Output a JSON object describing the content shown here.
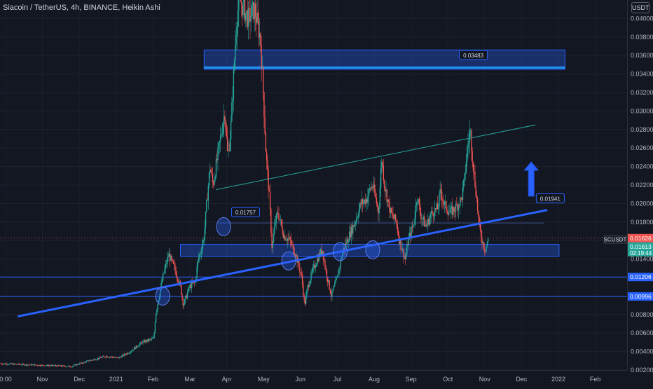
{
  "chart_data": {
    "type": "candlestick",
    "title": "Siacoin / TetherUS, 4h, BINANCE, Heikin Ashi",
    "currency_label": "USDT",
    "symbol": "SCUSDT",
    "ylim": [
      0.002,
      0.042
    ],
    "y_ticks": [
      0.002,
      0.004,
      0.006,
      0.008,
      0.01,
      0.012,
      0.014,
      0.016,
      0.018,
      0.02,
      0.022,
      0.024,
      0.026,
      0.028,
      0.03,
      0.032,
      0.034,
      0.036,
      0.038,
      0.04
    ],
    "x_ticks": [
      "0:00",
      "Nov",
      "Dec",
      "2021",
      "Feb",
      "Mar",
      "Apr",
      "May",
      "Jun",
      "Jul",
      "Aug",
      "Sep",
      "Oct",
      "Nov",
      "Dec",
      "2022",
      "Feb"
    ],
    "price_markers": [
      {
        "label": "0.01626",
        "value": 0.01626,
        "color": "#ef5350"
      },
      {
        "label": "0.01613",
        "value": 0.01613,
        "color": "#26a69a",
        "countdown": "02:19:44"
      },
      {
        "label": "0.01206",
        "value": 0.01206,
        "color": "#2962ff"
      },
      {
        "label": "0.00996",
        "value": 0.00996,
        "color": "#2962ff"
      }
    ],
    "annotations": [
      {
        "label": "0.03483",
        "value": 0.03483
      },
      {
        "label": "0.01757",
        "value": 0.01757
      },
      {
        "label": "0.01941",
        "value": 0.01941
      }
    ],
    "path": [
      [
        -0.06,
        0.0027
      ],
      [
        0.02,
        0.0025
      ],
      [
        0.06,
        0.0024
      ],
      [
        0.09,
        0.003
      ],
      [
        0.12,
        0.0035
      ],
      [
        0.14,
        0.0033
      ],
      [
        0.16,
        0.004
      ],
      [
        0.18,
        0.005
      ],
      [
        0.2,
        0.0054
      ],
      [
        0.203,
        0.008
      ],
      [
        0.215,
        0.012
      ],
      [
        0.225,
        0.0145
      ],
      [
        0.235,
        0.013
      ],
      [
        0.245,
        0.011
      ],
      [
        0.25,
        0.009
      ],
      [
        0.26,
        0.011
      ],
      [
        0.27,
        0.0115
      ],
      [
        0.275,
        0.014
      ],
      [
        0.28,
        0.015
      ],
      [
        0.285,
        0.0165
      ],
      [
        0.29,
        0.0205
      ],
      [
        0.295,
        0.024
      ],
      [
        0.3,
        0.022
      ],
      [
        0.31,
        0.026
      ],
      [
        0.32,
        0.03
      ],
      [
        0.325,
        0.025
      ],
      [
        0.33,
        0.028
      ],
      [
        0.335,
        0.034
      ],
      [
        0.34,
        0.04
      ],
      [
        0.345,
        0.042
      ],
      [
        0.36,
        0.04
      ],
      [
        0.37,
        0.041
      ],
      [
        0.38,
        0.038
      ],
      [
        0.385,
        0.032
      ],
      [
        0.39,
        0.025
      ],
      [
        0.395,
        0.021
      ],
      [
        0.4,
        0.015
      ],
      [
        0.405,
        0.018
      ],
      [
        0.41,
        0.019
      ],
      [
        0.42,
        0.0165
      ],
      [
        0.43,
        0.016
      ],
      [
        0.44,
        0.0145
      ],
      [
        0.45,
        0.012
      ],
      [
        0.455,
        0.009
      ],
      [
        0.46,
        0.011
      ],
      [
        0.47,
        0.013
      ],
      [
        0.48,
        0.0145
      ],
      [
        0.485,
        0.015
      ],
      [
        0.49,
        0.013
      ],
      [
        0.5,
        0.01
      ],
      [
        0.51,
        0.012
      ],
      [
        0.52,
        0.015
      ],
      [
        0.53,
        0.0165
      ],
      [
        0.54,
        0.018
      ],
      [
        0.55,
        0.02
      ],
      [
        0.56,
        0.0205
      ],
      [
        0.565,
        0.0215
      ],
      [
        0.57,
        0.022
      ],
      [
        0.58,
        0.019
      ],
      [
        0.585,
        0.025
      ],
      [
        0.59,
        0.022
      ],
      [
        0.6,
        0.019
      ],
      [
        0.61,
        0.018
      ],
      [
        0.615,
        0.016
      ],
      [
        0.62,
        0.015
      ],
      [
        0.625,
        0.014
      ],
      [
        0.63,
        0.016
      ],
      [
        0.64,
        0.018
      ],
      [
        0.645,
        0.021
      ],
      [
        0.65,
        0.019
      ],
      [
        0.66,
        0.0175
      ],
      [
        0.67,
        0.019
      ],
      [
        0.68,
        0.0195
      ],
      [
        0.685,
        0.0215
      ],
      [
        0.69,
        0.02
      ],
      [
        0.7,
        0.019
      ],
      [
        0.71,
        0.0195
      ],
      [
        0.72,
        0.0205
      ],
      [
        0.725,
        0.0225
      ],
      [
        0.73,
        0.026
      ],
      [
        0.735,
        0.028
      ],
      [
        0.74,
        0.024
      ],
      [
        0.745,
        0.021
      ],
      [
        0.75,
        0.0175
      ],
      [
        0.755,
        0.016
      ],
      [
        0.76,
        0.015
      ],
      [
        0.765,
        0.0161
      ]
    ],
    "zones": [
      {
        "x": [
          0.285,
          0.895
        ],
        "y": [
          0.0345,
          0.0366
        ]
      },
      {
        "x": [
          0.245,
          0.885
        ],
        "y": [
          0.0143,
          0.0156
        ]
      }
    ],
    "trendlines": [
      {
        "from": [
          -0.03,
          0.0078
        ],
        "to": [
          0.865,
          0.0193
        ],
        "style": "support"
      },
      {
        "from": [
          0.305,
          0.0215
        ],
        "to": [
          0.845,
          0.0285
        ],
        "style": "channel"
      }
    ],
    "horizontal_lines": [
      {
        "value": 0.0347,
        "x": [
          0.285,
          0.895
        ],
        "style": "bold"
      },
      {
        "value": 0.01206,
        "x": [
          -0.06,
          1.0
        ],
        "style": "thin"
      },
      {
        "value": 0.00996,
        "x": [
          -0.06,
          1.0
        ],
        "style": "thin"
      },
      {
        "value": 0.0179,
        "x": [
          0.31,
          0.86
        ],
        "style": "faint"
      },
      {
        "value": 0.01626,
        "x": [
          -0.06,
          1.0
        ],
        "style": "dotted"
      }
    ],
    "circles": [
      {
        "x": 0.215,
        "y": 0.01
      },
      {
        "x": 0.318,
        "y": 0.0175
      },
      {
        "x": 0.428,
        "y": 0.0138
      },
      {
        "x": 0.515,
        "y": 0.0148
      },
      {
        "x": 0.57,
        "y": 0.015
      }
    ],
    "arrow": {
      "from": [
        0.838,
        0.0208
      ],
      "to": [
        0.838,
        0.0245
      ]
    }
  }
}
